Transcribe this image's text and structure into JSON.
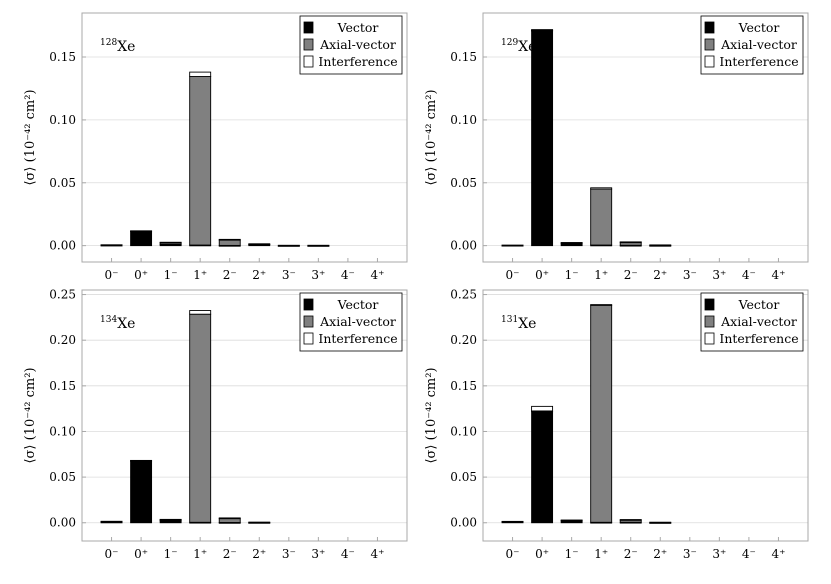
{
  "chart_data": [
    {
      "type": "bar",
      "stacked": true,
      "title": "",
      "annotation": {
        "mass_number": "128",
        "element": "Xe"
      },
      "xlabel": "",
      "ylabel": "⟨σ⟩ (10⁻⁴² cm²)",
      "categories": [
        "0⁻",
        "0⁺",
        "1⁻",
        "1⁺",
        "2⁻",
        "2⁺",
        "3⁻",
        "3⁺",
        "4⁻",
        "4⁺"
      ],
      "ylim": [
        -0.013,
        0.185
      ],
      "yticks": [
        0.0,
        0.05,
        0.1,
        0.15
      ],
      "ytick_labels": [
        "0.00",
        "0.05",
        "0.10",
        "0.15"
      ],
      "grid": true,
      "legend_position": "top-right",
      "series": [
        {
          "name": "Vector",
          "color": "#000000",
          "values": [
            0.0004,
            0.0115,
            0.001,
            0.0005,
            0.0002,
            0.001,
            0.0001,
            0.0001,
            0,
            0
          ]
        },
        {
          "name": "Axial-vector",
          "color": "#808080",
          "values": [
            0.0003,
            0.0003,
            0.0015,
            0.134,
            0.0045,
            0.0005,
            0.0002,
            0.0002,
            0,
            0
          ]
        },
        {
          "name": "Interference",
          "color": "#ffffff",
          "values": [
            0.0,
            0.0,
            0.0002,
            0.0035,
            0.0003,
            0.0,
            0.0,
            0.0,
            0,
            0
          ]
        }
      ]
    },
    {
      "type": "bar",
      "stacked": true,
      "title": "",
      "annotation": {
        "mass_number": "129",
        "element": "Xe"
      },
      "xlabel": "",
      "ylabel": "⟨σ⟩ (10⁻⁴² cm²)",
      "categories": [
        "0⁻",
        "0⁺",
        "1⁻",
        "1⁺",
        "2⁻",
        "2⁺",
        "3⁻",
        "3⁺",
        "4⁻",
        "4⁺"
      ],
      "ylim": [
        -0.013,
        0.185
      ],
      "yticks": [
        0.0,
        0.05,
        0.1,
        0.15
      ],
      "ytick_labels": [
        "0.00",
        "0.05",
        "0.10",
        "0.15"
      ],
      "grid": true,
      "legend_position": "top-right",
      "series": [
        {
          "name": "Vector",
          "color": "#000000",
          "values": [
            0.0003,
            0.171,
            0.002,
            0.0005,
            0.0003,
            0.0002,
            0,
            0,
            0,
            0
          ]
        },
        {
          "name": "Axial-vector",
          "color": "#808080",
          "values": [
            0.0001,
            0.0003,
            0.0005,
            0.0445,
            0.0025,
            0.0004,
            0,
            0,
            0,
            0
          ]
        },
        {
          "name": "Interference",
          "color": "#ffffff",
          "values": [
            0.0,
            0.0005,
            0.0,
            0.001,
            0.0002,
            0.0,
            0,
            0,
            0,
            0
          ]
        }
      ]
    },
    {
      "type": "bar",
      "stacked": true,
      "title": "",
      "annotation": {
        "mass_number": "134",
        "element": "Xe"
      },
      "xlabel": "",
      "ylabel": "⟨σ⟩ (10⁻⁴² cm²)",
      "categories": [
        "0⁻",
        "0⁺",
        "1⁻",
        "1⁺",
        "2⁻",
        "2⁺",
        "3⁻",
        "3⁺",
        "4⁻",
        "4⁺"
      ],
      "ylim": [
        -0.02,
        0.255
      ],
      "yticks": [
        0.0,
        0.05,
        0.1,
        0.15,
        0.2,
        0.25
      ],
      "ytick_labels": [
        "0.00",
        "0.05",
        "0.10",
        "0.15",
        "0.20",
        "0.25"
      ],
      "grid": true,
      "legend_position": "top-right",
      "series": [
        {
          "name": "Vector",
          "color": "#000000",
          "values": [
            0.0008,
            0.068,
            0.002,
            0.0005,
            0.0003,
            0.0003,
            0,
            0,
            0,
            0
          ]
        },
        {
          "name": "Axial-vector",
          "color": "#808080",
          "values": [
            0.0006,
            0.0003,
            0.0015,
            0.228,
            0.0045,
            0.0004,
            0,
            0,
            0,
            0
          ]
        },
        {
          "name": "Interference",
          "color": "#ffffff",
          "values": [
            0.0002,
            0.0,
            0.0002,
            0.004,
            0.0005,
            0.0,
            0,
            0,
            0,
            0
          ]
        }
      ]
    },
    {
      "type": "bar",
      "stacked": true,
      "title": "",
      "annotation": {
        "mass_number": "131",
        "element": "Xe"
      },
      "xlabel": "",
      "ylabel": "⟨σ⟩ (10⁻⁴² cm²)",
      "categories": [
        "0⁻",
        "0⁺",
        "1⁻",
        "1⁺",
        "2⁻",
        "2⁺",
        "3⁻",
        "3⁺",
        "4⁻",
        "4⁺"
      ],
      "ylim": [
        -0.02,
        0.255
      ],
      "yticks": [
        0.0,
        0.05,
        0.1,
        0.15,
        0.2,
        0.25
      ],
      "ytick_labels": [
        "0.00",
        "0.05",
        "0.10",
        "0.15",
        "0.20",
        "0.25"
      ],
      "grid": true,
      "legend_position": "top-right",
      "series": [
        {
          "name": "Vector",
          "color": "#000000",
          "values": [
            0.0012,
            0.122,
            0.0025,
            0.0005,
            0.0005,
            0.0002,
            0,
            0,
            0,
            0
          ]
        },
        {
          "name": "Axial-vector",
          "color": "#808080",
          "values": [
            0.0003,
            0.0005,
            0.0005,
            0.238,
            0.0025,
            0.0004,
            0,
            0,
            0,
            0
          ]
        },
        {
          "name": "Interference",
          "color": "#ffffff",
          "values": [
            0.0,
            0.005,
            0.0,
            0.0005,
            0.0005,
            0.0,
            0,
            0,
            0,
            0
          ]
        }
      ]
    }
  ]
}
